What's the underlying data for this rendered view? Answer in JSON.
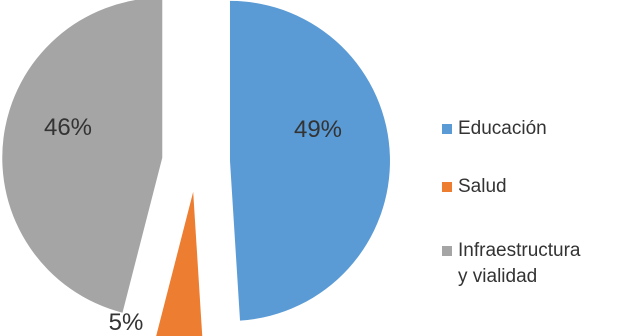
{
  "chart_data": {
    "type": "pie",
    "exploded": true,
    "legend_position": "right",
    "categories": [
      "Educación",
      "Salud",
      "Infraestructura\ny vialidad"
    ],
    "values": [
      49,
      5,
      46
    ],
    "labels": [
      "49%",
      "5%",
      "46%"
    ],
    "colors": [
      "#5B9BD5",
      "#ED7D31",
      "#A5A5A5"
    ]
  }
}
